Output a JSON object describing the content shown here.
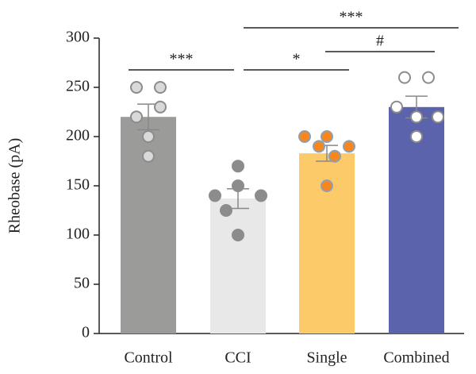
{
  "chart_data": {
    "type": "bar",
    "ylabel": "Rheobase (pA)",
    "categories": [
      "Control",
      "CCI",
      "Single",
      "Combined"
    ],
    "values": [
      220,
      137,
      183,
      230
    ],
    "errors": [
      13,
      10,
      8,
      11
    ],
    "colors": [
      "#9b9b9a",
      "#e8e8e8",
      "#fdca6a",
      "#5b63ad"
    ],
    "point_fill": [
      "#d9d9d9",
      "#8c8c8c",
      "#f7861e",
      "#ffffff"
    ],
    "point_stroke": [
      "#8c8c8c",
      "#8c8c8c",
      "#8fa0b0",
      "#8c8c8c"
    ],
    "points": [
      [
        250,
        250,
        220,
        230,
        200,
        180
      ],
      [
        170,
        140,
        150,
        140,
        125,
        100
      ],
      [
        200,
        190,
        200,
        190,
        180,
        150
      ],
      [
        260,
        260,
        230,
        220,
        220,
        200
      ]
    ],
    "ylim": [
      0,
      300
    ],
    "yticks": [
      0,
      50,
      100,
      150,
      200,
      250,
      300
    ],
    "annotations": [
      {
        "label": "***",
        "from": "Control",
        "to": "CCI"
      },
      {
        "label": "*",
        "from": "CCI",
        "to": "Single"
      },
      {
        "label": "#",
        "from": "Single",
        "to": "Combined"
      },
      {
        "label": "***",
        "from": "CCI",
        "to": "Combined"
      }
    ]
  }
}
